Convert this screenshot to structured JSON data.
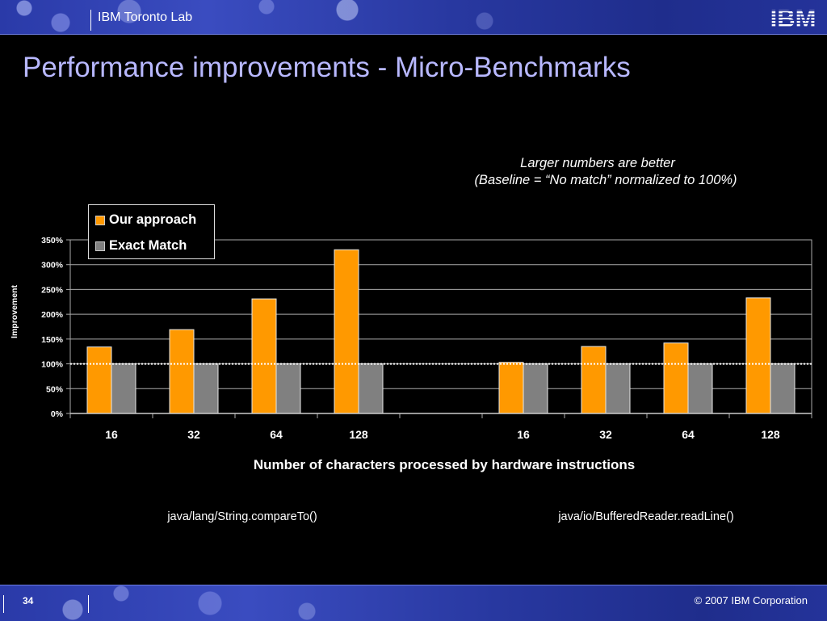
{
  "header": {
    "lab_title": "IBM Toronto Lab",
    "logo_icon": "ibm-striped-logo",
    "logo_text": "IBM"
  },
  "slide": {
    "title": "Performance improvements - Micro-Benchmarks",
    "note_line1": "Larger numbers are better",
    "note_line2": "(Baseline = “No match” normalized to 100%)"
  },
  "chart_data": {
    "type": "bar",
    "title": "",
    "xlabel": "Number of characters processed by hardware instructions",
    "ylabel": "Improvement",
    "ylim": [
      0,
      3.5
    ],
    "y_ticks": [
      "0%",
      "50%",
      "100%",
      "150%",
      "200%",
      "250%",
      "300%",
      "350%"
    ],
    "grid": true,
    "legend_position": "top-left",
    "baseline_value": 1.0,
    "groups": [
      "java/lang/String.compareTo()",
      "java/io/BufferedReader.readLine()"
    ],
    "categories": [
      "16",
      "32",
      "64",
      "128",
      "",
      "16",
      "32",
      "64",
      "128"
    ],
    "series": [
      {
        "name": "Our approach",
        "color": "#ff9900",
        "values": [
          1.34,
          1.69,
          2.31,
          3.3,
          null,
          1.03,
          1.35,
          1.42,
          2.33
        ]
      },
      {
        "name": "Exact Match",
        "color": "#808080",
        "values": [
          1.0,
          1.0,
          1.0,
          1.0,
          null,
          1.0,
          1.0,
          1.0,
          1.0
        ]
      }
    ]
  },
  "footer": {
    "page_number": "34",
    "copyright": "© 2007 IBM Corporation"
  }
}
